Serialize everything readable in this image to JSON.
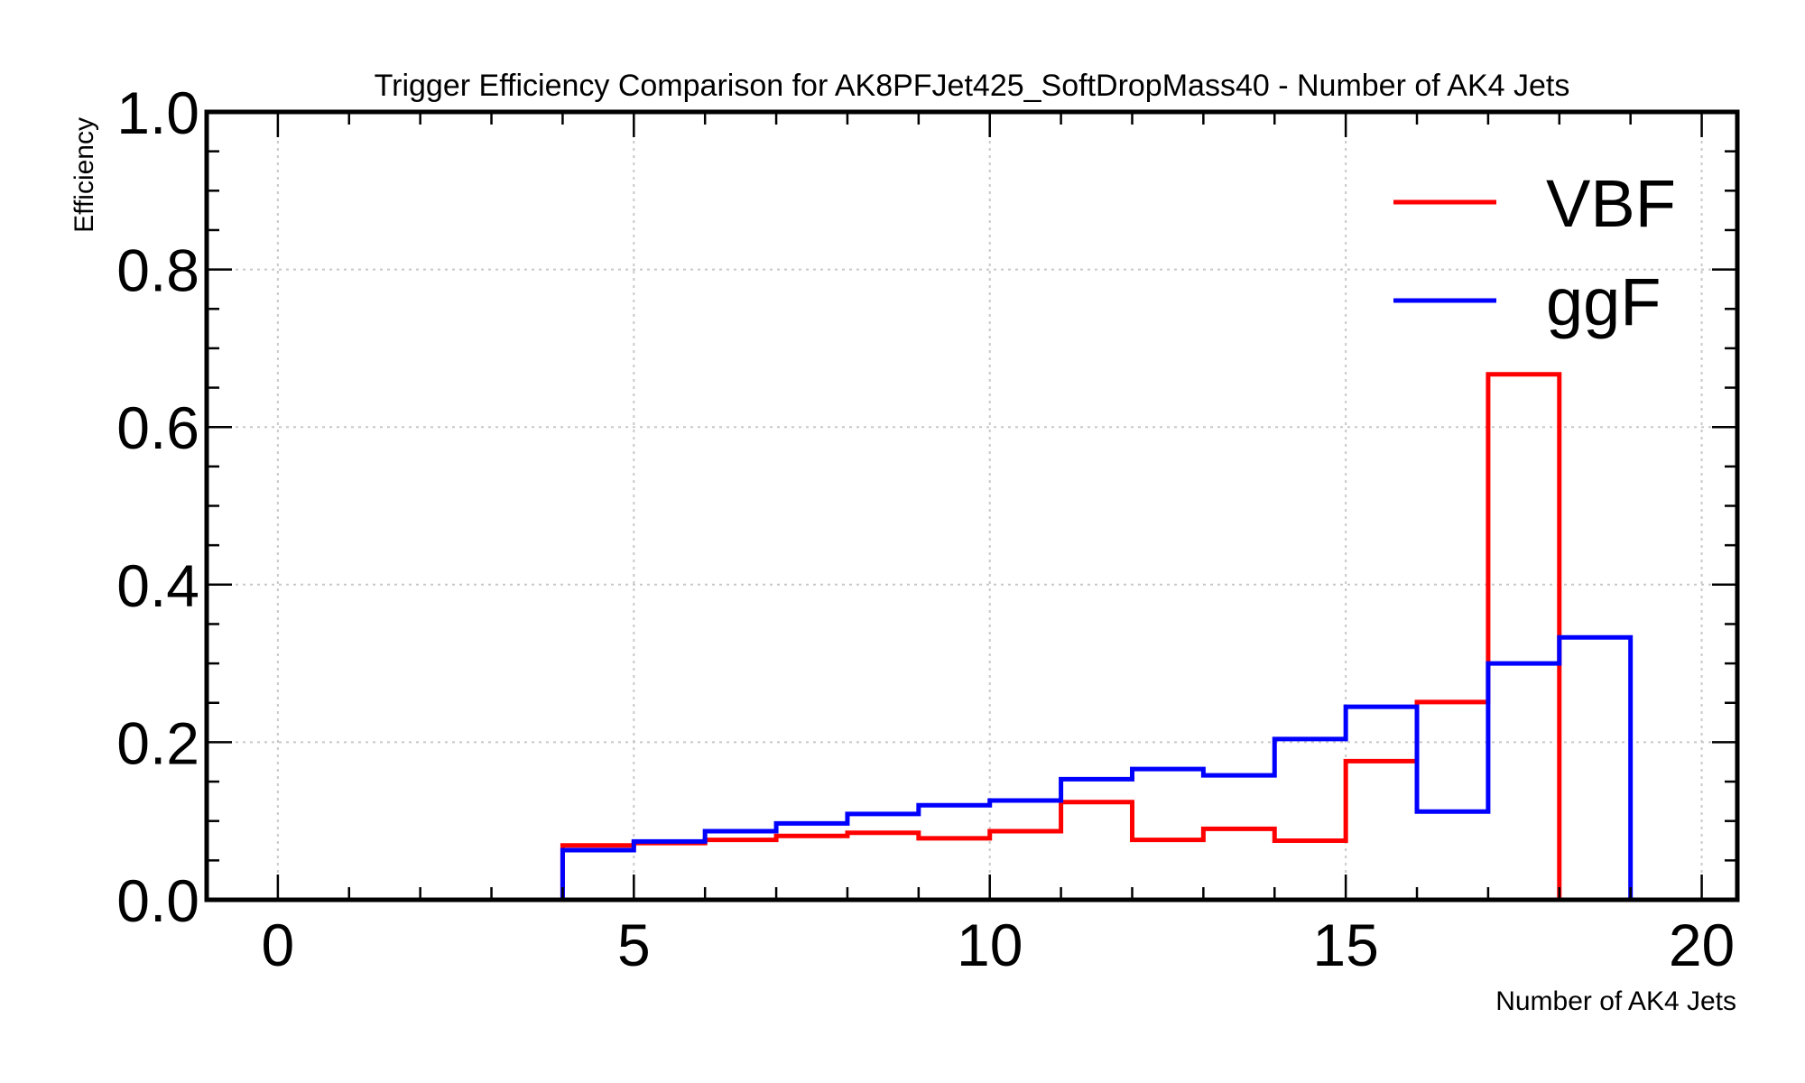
{
  "chart_data": {
    "type": "step",
    "title": "Trigger Efficiency Comparison for AK8PFJet425_SoftDropMass40 - Number of AK4 Jets",
    "xlabel": "Number of AK4 Jets",
    "ylabel": "Efficiency",
    "xlim": [
      -1,
      20.5
    ],
    "ylim": [
      0,
      1.0
    ],
    "x_ticks": [
      "0",
      "5",
      "10",
      "15",
      "20"
    ],
    "y_ticks": [
      "0.0",
      "0.2",
      "0.4",
      "0.6",
      "0.8",
      "1.0"
    ],
    "grid": true,
    "legend_position": "top-right",
    "bin_edges": [
      4,
      5,
      6,
      7,
      8,
      9,
      10,
      11,
      12,
      13,
      14,
      15,
      16,
      17,
      18,
      19
    ],
    "series": [
      {
        "name": "VBF",
        "color": "#ff0000",
        "values": [
          0.069,
          0.072,
          0.076,
          0.081,
          0.085,
          0.078,
          0.087,
          0.124,
          0.076,
          0.09,
          0.075,
          0.176,
          0.251,
          0.667,
          0.0
        ]
      },
      {
        "name": "ggF",
        "color": "#0000ff",
        "values": [
          0.063,
          0.074,
          0.087,
          0.097,
          0.109,
          0.12,
          0.126,
          0.153,
          0.166,
          0.158,
          0.204,
          0.245,
          0.112,
          0.3,
          0.333
        ]
      }
    ]
  }
}
